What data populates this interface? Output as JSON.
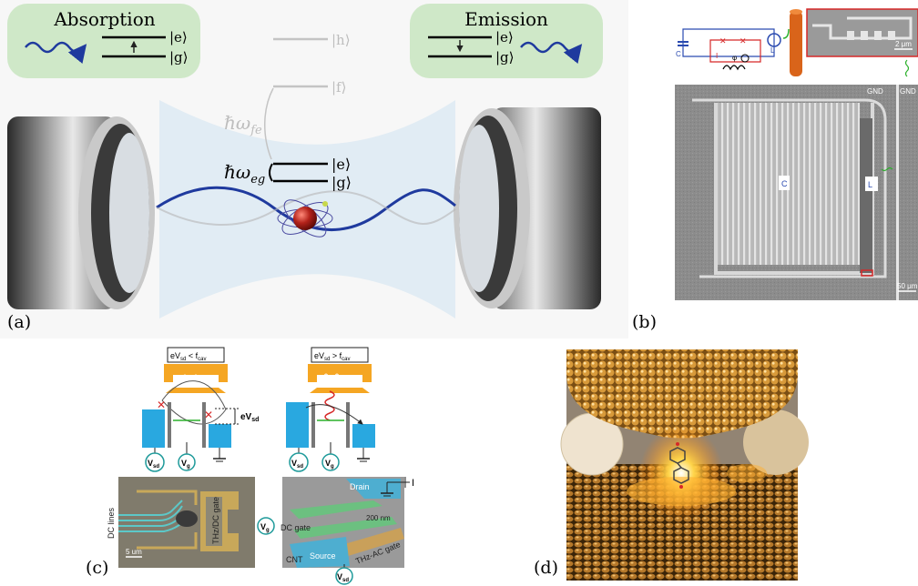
{
  "panel_a": {
    "label": "(a)",
    "absorption": {
      "title": "Absorption",
      "e": "|e⟩",
      "g": "|g⟩"
    },
    "emission": {
      "title": "Emission",
      "e": "|e⟩",
      "g": "|g⟩"
    },
    "levels": {
      "h": "|h⟩",
      "f": "|f⟩",
      "e": "|e⟩",
      "g": "|g⟩"
    },
    "transition_fe": "ℏω",
    "transition_fe_sub": "fe",
    "transition_eg": "ℏω",
    "transition_eg_sub": "eg"
  },
  "panel_b": {
    "label": "(b)",
    "circuit_labels": {
      "c": "C",
      "lcoil": "L",
      "ib": "I",
      "phi": "φ"
    },
    "scale_top": "2 μm",
    "scale_main": "50 μm",
    "gnd_left": "GND",
    "gnd_right": "GND",
    "capacitor_label": "C",
    "inductor_label": "L"
  },
  "panel_c": {
    "label": "(c)",
    "cond_left": "eV",
    "cond_left_sub": "sd",
    "cond_left_rest": " < f",
    "cond_left_sub2": "cav",
    "cond_right": "eV",
    "cond_right_sub": "sd",
    "cond_right_rest": " > f",
    "cond_right_sub2": "cav",
    "evsd": "eV",
    "evsd_sub": "sd",
    "vsd": "V",
    "vsd_sub": "sd",
    "vg": "V",
    "vg_sub": "g",
    "dc_lines": "DC lines",
    "thz_dc_gate": "THz/DC gate",
    "scale_left": "5 um",
    "drain": "Drain",
    "current": "I",
    "nm200": "200 nm",
    "dc_gate": "DC gate",
    "thz_ac_gate": "THz-AC gate",
    "cnt": "CNT",
    "source": "Source"
  },
  "panel_d": {
    "label": "(d)"
  },
  "colors": {
    "green_box": "#cfe8c8",
    "wave_blue": "#1f3a9e",
    "cyan_block": "#29a8e0",
    "orange_cavity": "#f5a623",
    "gold": "#c8952e"
  }
}
